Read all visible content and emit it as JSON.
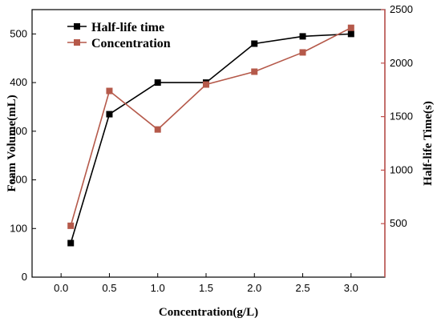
{
  "chart_data": {
    "type": "line",
    "x": [
      0.1,
      0.5,
      1.0,
      1.5,
      2.0,
      2.5,
      3.0
    ],
    "xlabel": "Concentration(g/L)",
    "xlim": [
      -0.3,
      3.35
    ],
    "xticks": [
      0.0,
      0.5,
      1.0,
      1.5,
      2.0,
      2.5,
      3.0
    ],
    "xtick_labels": [
      "0.0",
      "0.5",
      "1.0",
      "1.5",
      "2.0",
      "2.5",
      "3.0"
    ],
    "ylabel_left": "Foam Volume(mL)",
    "ylim_left": [
      0,
      550
    ],
    "yticks_left": [
      0,
      100,
      200,
      300,
      400,
      500
    ],
    "ylabel_right": "Half-life Time(s)",
    "ylim_right": [
      0,
      2500
    ],
    "yticks_right": [
      500,
      1000,
      1500,
      2000,
      2500
    ],
    "right_axis_color": "#c0504d",
    "legend_position": "top-left",
    "grid": false,
    "series": [
      {
        "name": "Half-life time",
        "axis": "left",
        "color": "#000000",
        "marker": "square",
        "values": [
          70,
          335,
          400,
          400,
          480,
          495,
          500
        ]
      },
      {
        "name": "Concentration",
        "axis": "right",
        "color": "#b5594a",
        "marker": "square",
        "values": [
          480,
          1740,
          1380,
          1800,
          1920,
          2100,
          2330
        ]
      }
    ]
  }
}
